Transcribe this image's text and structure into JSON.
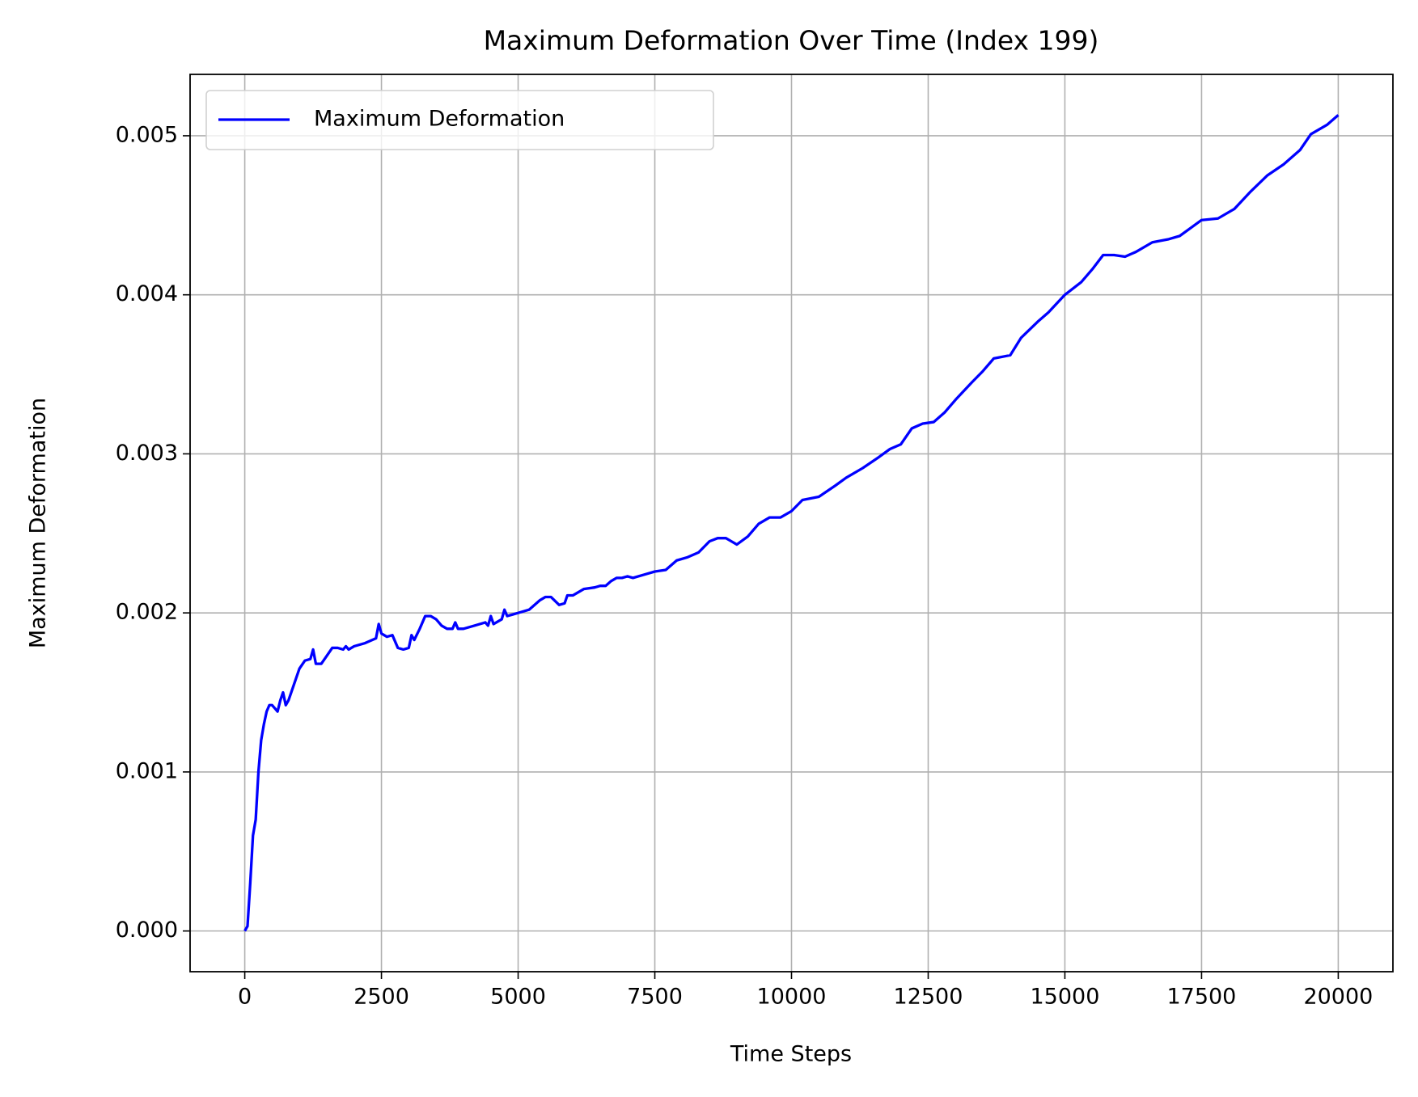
{
  "chart_data": {
    "type": "line",
    "title": "Maximum Deformation Over Time (Index 199)",
    "x_label": "Time Steps",
    "y_label": "Maximum Deformation",
    "x": [
      0,
      50,
      100,
      150,
      200,
      250,
      300,
      350,
      400,
      450,
      500,
      550,
      600,
      650,
      700,
      750,
      800,
      900,
      1000,
      1100,
      1200,
      1250,
      1300,
      1400,
      1500,
      1600,
      1700,
      1800,
      1850,
      1900,
      2000,
      2200,
      2400,
      2450,
      2500,
      2600,
      2700,
      2800,
      2900,
      3000,
      3050,
      3100,
      3200,
      3300,
      3400,
      3500,
      3600,
      3700,
      3800,
      3850,
      3900,
      4000,
      4200,
      4400,
      4450,
      4500,
      4550,
      4700,
      4750,
      4800,
      5000,
      5200,
      5400,
      5500,
      5600,
      5750,
      5850,
      5900,
      6000,
      6200,
      6400,
      6500,
      6600,
      6700,
      6800,
      6900,
      7000,
      7100,
      7300,
      7500,
      7700,
      7900,
      8100,
      8300,
      8500,
      8650,
      8800,
      8900,
      9000,
      9200,
      9400,
      9600,
      9800,
      10000,
      10200,
      10500,
      10800,
      11000,
      11300,
      11600,
      11800,
      12000,
      12200,
      12400,
      12600,
      12800,
      13000,
      13300,
      13500,
      13700,
      14000,
      14200,
      14500,
      14700,
      15000,
      15300,
      15500,
      15700,
      15900,
      16100,
      16300,
      16600,
      16900,
      17100,
      17300,
      17500,
      17800,
      18100,
      18400,
      18700,
      19000,
      19300,
      19500,
      19800,
      20000
    ],
    "series": [
      {
        "name": "Maximum Deformation",
        "color": "#0000ff",
        "values": [
          0,
          3e-05,
          0.0003,
          0.0006,
          0.0007,
          0.001,
          0.0012,
          0.0013,
          0.00138,
          0.00142,
          0.00142,
          0.0014,
          0.00138,
          0.00145,
          0.0015,
          0.00142,
          0.00145,
          0.00155,
          0.00165,
          0.0017,
          0.00171,
          0.00177,
          0.00168,
          0.00168,
          0.00173,
          0.00178,
          0.00178,
          0.00177,
          0.00179,
          0.00177,
          0.00179,
          0.00181,
          0.00184,
          0.00193,
          0.00187,
          0.00185,
          0.00186,
          0.00178,
          0.00177,
          0.00178,
          0.00186,
          0.00183,
          0.0019,
          0.00198,
          0.00198,
          0.00196,
          0.00192,
          0.0019,
          0.0019,
          0.00194,
          0.0019,
          0.0019,
          0.00192,
          0.00194,
          0.00192,
          0.00198,
          0.00193,
          0.00196,
          0.00202,
          0.00198,
          0.002,
          0.00202,
          0.00208,
          0.0021,
          0.0021,
          0.00205,
          0.00206,
          0.00211,
          0.00211,
          0.00215,
          0.00216,
          0.00217,
          0.00217,
          0.0022,
          0.00222,
          0.00222,
          0.00223,
          0.00222,
          0.00224,
          0.00226,
          0.00227,
          0.00233,
          0.00235,
          0.00238,
          0.00245,
          0.00247,
          0.00247,
          0.00245,
          0.00243,
          0.00248,
          0.00256,
          0.0026,
          0.0026,
          0.00264,
          0.00271,
          0.00273,
          0.0028,
          0.00285,
          0.00291,
          0.00298,
          0.00303,
          0.00306,
          0.00316,
          0.00319,
          0.0032,
          0.00326,
          0.00334,
          0.00345,
          0.00352,
          0.0036,
          0.00362,
          0.00373,
          0.00383,
          0.00389,
          0.004,
          0.00408,
          0.00416,
          0.00425,
          0.00425,
          0.00424,
          0.00427,
          0.00433,
          0.00435,
          0.00437,
          0.00442,
          0.00447,
          0.00448,
          0.00454,
          0.00465,
          0.00475,
          0.00482,
          0.00491,
          0.00501,
          0.00507,
          0.00513
        ]
      }
    ],
    "xlim": [
      -1000,
      21000
    ],
    "xticks": [
      0,
      2500,
      5000,
      7500,
      10000,
      12500,
      15000,
      17500,
      20000
    ],
    "ylim": [
      -0.000256,
      0.005386
    ],
    "yticks": [
      {
        "value": 0,
        "label": "0.000"
      },
      0.001,
      0.002,
      0.003,
      0.004,
      0.005
    ],
    "grid": true,
    "legend": "upper-left"
  }
}
